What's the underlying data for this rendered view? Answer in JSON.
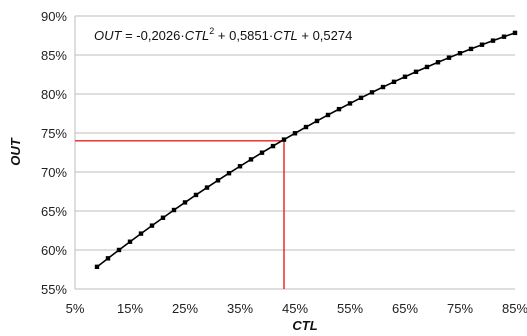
{
  "chart_data": {
    "type": "line",
    "xlabel": "CTL",
    "ylabel": "OUT",
    "xlim": [
      0.05,
      0.85
    ],
    "ylim": [
      0.55,
      0.9
    ],
    "x_ticks": [
      "5%",
      "15%",
      "25%",
      "35%",
      "45%",
      "55%",
      "65%",
      "75%",
      "85%"
    ],
    "y_ticks": [
      "55%",
      "60%",
      "65%",
      "70%",
      "75%",
      "80%",
      "85%",
      "90%"
    ],
    "grid": "horizontal",
    "equation": {
      "prefix": "OUT",
      "eq": " = -0,2026·",
      "var1": "CTL",
      "sup": "2",
      "mid": " + 0,5851·",
      "var2": "CTL",
      "tail": " + 0,5274"
    },
    "coefficients": {
      "a": -0.2026,
      "b": 0.5851,
      "c": 0.5274
    },
    "x_range": {
      "start": 0.09,
      "end": 0.85,
      "step": 0.02
    },
    "marker": {
      "x": 0.43,
      "y": 0.74,
      "color": "#e8211b"
    },
    "line_color": "#000000"
  }
}
